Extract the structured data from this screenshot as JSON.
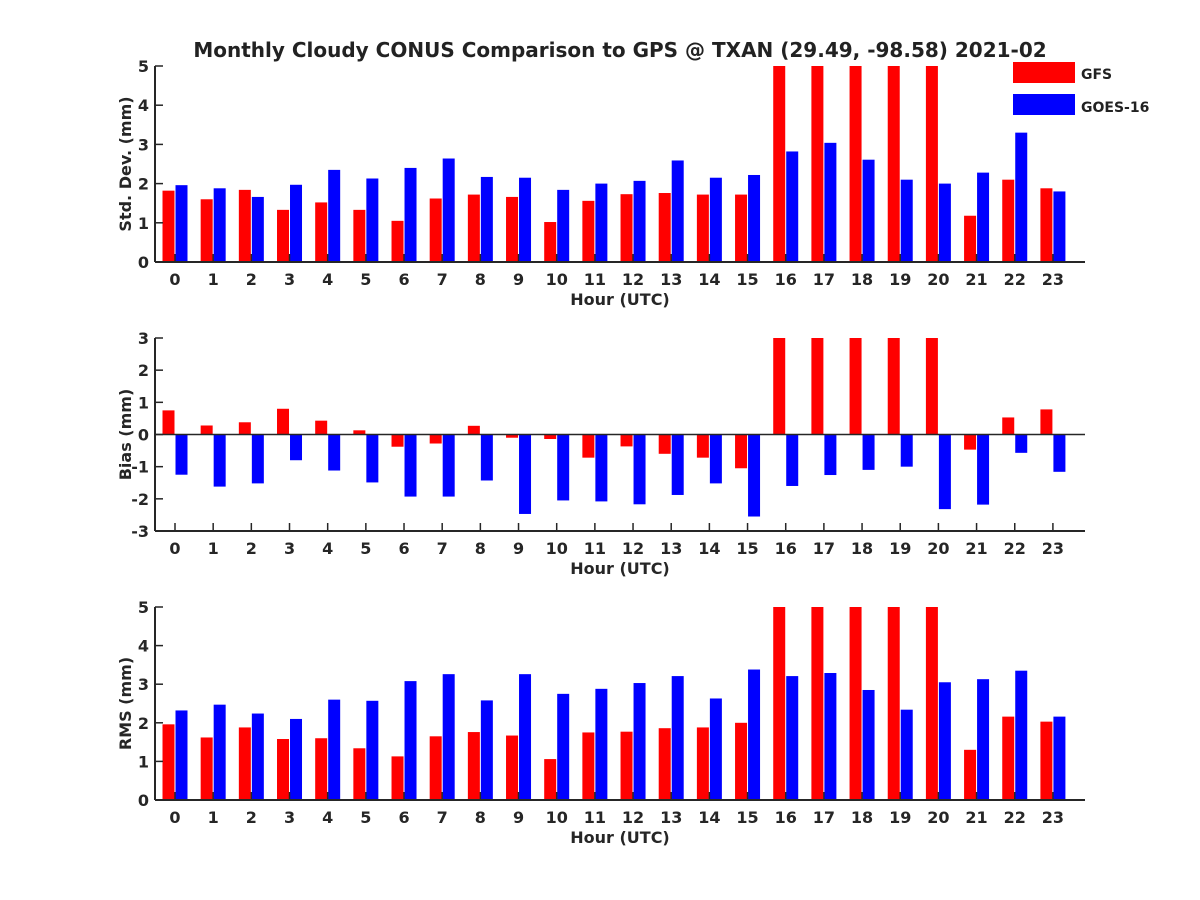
{
  "title": "Monthly Cloudy CONUS Comparison to GPS @ TXAN (29.49, -98.58) 2021-02",
  "legend": {
    "placement": "top-right",
    "items": [
      {
        "label": "GFS",
        "color": "#ff0000"
      },
      {
        "label": "GOES-16",
        "color": "#0000ff"
      }
    ]
  },
  "chart_data": [
    {
      "type": "bar",
      "xlabel": "Hour (UTC)",
      "ylabel": "Std. Dev. (mm)",
      "ylim": [
        0,
        5
      ],
      "yticks": [
        0,
        1,
        2,
        3,
        4,
        5
      ],
      "categories": [
        "0",
        "1",
        "2",
        "3",
        "4",
        "5",
        "6",
        "7",
        "8",
        "9",
        "10",
        "11",
        "12",
        "13",
        "14",
        "15",
        "16",
        "17",
        "18",
        "19",
        "20",
        "21",
        "22",
        "23"
      ],
      "series": [
        {
          "name": "GFS",
          "color": "#ff0000",
          "values": [
            1.82,
            1.6,
            1.84,
            1.33,
            1.52,
            1.33,
            1.05,
            1.62,
            1.72,
            1.66,
            1.02,
            1.56,
            1.73,
            1.76,
            1.72,
            1.72,
            5,
            5,
            5,
            5,
            5,
            1.18,
            2.1,
            1.88
          ]
        },
        {
          "name": "GOES-16",
          "color": "#0000ff",
          "values": [
            1.96,
            1.88,
            1.66,
            1.97,
            2.35,
            2.13,
            2.4,
            2.64,
            2.17,
            2.15,
            1.84,
            2.0,
            2.07,
            2.59,
            2.15,
            2.22,
            2.82,
            3.04,
            2.61,
            2.1,
            2.0,
            2.28,
            3.3,
            1.8
          ]
        }
      ]
    },
    {
      "type": "bar",
      "xlabel": "Hour (UTC)",
      "ylabel": "Bias (mm)",
      "ylim": [
        -3,
        3
      ],
      "yticks": [
        -3,
        -2,
        -1,
        0,
        1,
        2,
        3
      ],
      "categories": [
        "0",
        "1",
        "2",
        "3",
        "4",
        "5",
        "6",
        "7",
        "8",
        "9",
        "10",
        "11",
        "12",
        "13",
        "14",
        "15",
        "16",
        "17",
        "18",
        "19",
        "20",
        "21",
        "22",
        "23"
      ],
      "series": [
        {
          "name": "GFS",
          "color": "#ff0000",
          "values": [
            0.75,
            0.28,
            0.38,
            0.8,
            0.43,
            0.13,
            -0.38,
            -0.28,
            0.27,
            -0.1,
            -0.14,
            -0.72,
            -0.37,
            -0.6,
            -0.72,
            -1.05,
            3,
            3,
            3,
            3,
            3,
            -0.47,
            0.53,
            0.78
          ]
        },
        {
          "name": "GOES-16",
          "color": "#0000ff",
          "values": [
            -1.25,
            -1.62,
            -1.52,
            -0.8,
            -1.12,
            -1.49,
            -1.93,
            -1.93,
            -1.43,
            -2.47,
            -2.05,
            -2.08,
            -2.17,
            -1.88,
            -1.52,
            -2.55,
            -1.6,
            -1.26,
            -1.1,
            -1.0,
            -2.32,
            -2.18,
            -0.57,
            -1.16
          ]
        }
      ]
    },
    {
      "type": "bar",
      "xlabel": "Hour (UTC)",
      "ylabel": "RMS (mm)",
      "ylim": [
        0,
        5
      ],
      "yticks": [
        0,
        1,
        2,
        3,
        4,
        5
      ],
      "categories": [
        "0",
        "1",
        "2",
        "3",
        "4",
        "5",
        "6",
        "7",
        "8",
        "9",
        "10",
        "11",
        "12",
        "13",
        "14",
        "15",
        "16",
        "17",
        "18",
        "19",
        "20",
        "21",
        "22",
        "23"
      ],
      "series": [
        {
          "name": "GFS",
          "color": "#ff0000",
          "values": [
            1.96,
            1.62,
            1.88,
            1.58,
            1.6,
            1.34,
            1.13,
            1.65,
            1.76,
            1.67,
            1.06,
            1.75,
            1.77,
            1.86,
            1.88,
            2.0,
            5,
            5,
            5,
            5,
            5,
            1.3,
            2.16,
            2.03
          ]
        },
        {
          "name": "GOES-16",
          "color": "#0000ff",
          "values": [
            2.32,
            2.47,
            2.24,
            2.1,
            2.6,
            2.57,
            3.08,
            3.26,
            2.58,
            3.26,
            2.75,
            2.88,
            3.03,
            3.21,
            2.63,
            3.38,
            3.21,
            3.29,
            2.85,
            2.34,
            3.05,
            3.13,
            3.35,
            2.16
          ]
        }
      ]
    }
  ]
}
